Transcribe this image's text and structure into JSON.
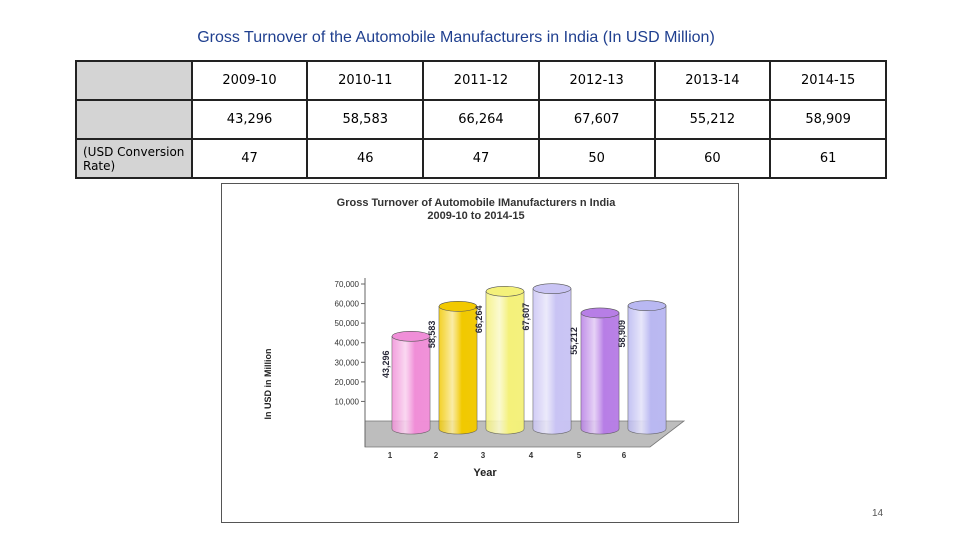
{
  "slide": {
    "title": "Gross Turnover of the Automobile Manufacturers in India (In USD Million)",
    "page_number": "14"
  },
  "table": {
    "header": [
      "",
      "2009-10",
      "2010-11",
      "2011-12",
      "2012-13",
      "2013-14",
      "2014-15"
    ],
    "rows": [
      [
        "",
        "43,296",
        "58,583",
        "66,264",
        "67,607",
        "55,212",
        "58,909"
      ],
      [
        "(USD Conversion Rate)",
        "47",
        "46",
        "47",
        "50",
        "60",
        "61"
      ]
    ]
  },
  "chart_data": {
    "type": "bar",
    "title": "Gross Turnover of Automobile IManufacturers n India",
    "subtitle": "2009-10 to 2014-15",
    "xlabel": "Year",
    "ylabel": "In USD in Million",
    "categories": [
      "1",
      "2",
      "3",
      "4",
      "5",
      "6"
    ],
    "values": [
      43296,
      58583,
      66264,
      67607,
      55212,
      58909
    ],
    "data_labels": [
      "43,296",
      "58,583",
      "66,264",
      "67,607",
      "55,212",
      "58,909"
    ],
    "ylim": [
      0,
      70000
    ],
    "yticks": [
      10000,
      20000,
      30000,
      40000,
      50000,
      60000,
      70000
    ],
    "ytick_labels": [
      "10,000",
      "20,000",
      "30,000",
      "40,000",
      "50,000",
      "60,000",
      "70,000"
    ],
    "bar_colors": [
      "#f08ed8",
      "#f2c900",
      "#f4f17a",
      "#c9c4f4",
      "#b77ee6",
      "#b9b8f2"
    ],
    "legend": "none"
  }
}
